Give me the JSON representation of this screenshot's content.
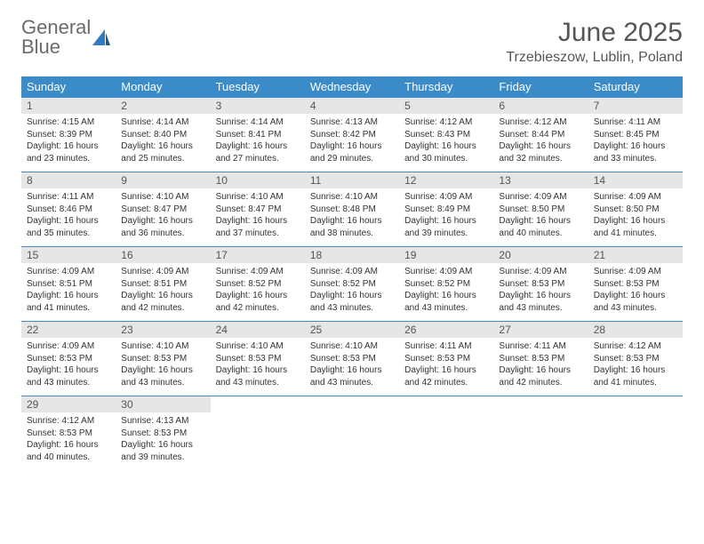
{
  "logo": {
    "line1": "General",
    "line2": "Blue"
  },
  "title": "June 2025",
  "location": "Trzebieszow, Lublin, Poland",
  "colors": {
    "header_bg": "#3b8bc8",
    "header_text": "#ffffff",
    "daynum_bg": "#e6e6e6",
    "text": "#333333",
    "title_text": "#555555",
    "logo_gray": "#6b6b6b",
    "logo_blue": "#2f7ac0"
  },
  "weekdays": [
    "Sunday",
    "Monday",
    "Tuesday",
    "Wednesday",
    "Thursday",
    "Friday",
    "Saturday"
  ],
  "weeks": [
    [
      {
        "n": "1",
        "sunrise": "4:15 AM",
        "sunset": "8:39 PM",
        "daylight": "16 hours and 23 minutes."
      },
      {
        "n": "2",
        "sunrise": "4:14 AM",
        "sunset": "8:40 PM",
        "daylight": "16 hours and 25 minutes."
      },
      {
        "n": "3",
        "sunrise": "4:14 AM",
        "sunset": "8:41 PM",
        "daylight": "16 hours and 27 minutes."
      },
      {
        "n": "4",
        "sunrise": "4:13 AM",
        "sunset": "8:42 PM",
        "daylight": "16 hours and 29 minutes."
      },
      {
        "n": "5",
        "sunrise": "4:12 AM",
        "sunset": "8:43 PM",
        "daylight": "16 hours and 30 minutes."
      },
      {
        "n": "6",
        "sunrise": "4:12 AM",
        "sunset": "8:44 PM",
        "daylight": "16 hours and 32 minutes."
      },
      {
        "n": "7",
        "sunrise": "4:11 AM",
        "sunset": "8:45 PM",
        "daylight": "16 hours and 33 minutes."
      }
    ],
    [
      {
        "n": "8",
        "sunrise": "4:11 AM",
        "sunset": "8:46 PM",
        "daylight": "16 hours and 35 minutes."
      },
      {
        "n": "9",
        "sunrise": "4:10 AM",
        "sunset": "8:47 PM",
        "daylight": "16 hours and 36 minutes."
      },
      {
        "n": "10",
        "sunrise": "4:10 AM",
        "sunset": "8:47 PM",
        "daylight": "16 hours and 37 minutes."
      },
      {
        "n": "11",
        "sunrise": "4:10 AM",
        "sunset": "8:48 PM",
        "daylight": "16 hours and 38 minutes."
      },
      {
        "n": "12",
        "sunrise": "4:09 AM",
        "sunset": "8:49 PM",
        "daylight": "16 hours and 39 minutes."
      },
      {
        "n": "13",
        "sunrise": "4:09 AM",
        "sunset": "8:50 PM",
        "daylight": "16 hours and 40 minutes."
      },
      {
        "n": "14",
        "sunrise": "4:09 AM",
        "sunset": "8:50 PM",
        "daylight": "16 hours and 41 minutes."
      }
    ],
    [
      {
        "n": "15",
        "sunrise": "4:09 AM",
        "sunset": "8:51 PM",
        "daylight": "16 hours and 41 minutes."
      },
      {
        "n": "16",
        "sunrise": "4:09 AM",
        "sunset": "8:51 PM",
        "daylight": "16 hours and 42 minutes."
      },
      {
        "n": "17",
        "sunrise": "4:09 AM",
        "sunset": "8:52 PM",
        "daylight": "16 hours and 42 minutes."
      },
      {
        "n": "18",
        "sunrise": "4:09 AM",
        "sunset": "8:52 PM",
        "daylight": "16 hours and 43 minutes."
      },
      {
        "n": "19",
        "sunrise": "4:09 AM",
        "sunset": "8:52 PM",
        "daylight": "16 hours and 43 minutes."
      },
      {
        "n": "20",
        "sunrise": "4:09 AM",
        "sunset": "8:53 PM",
        "daylight": "16 hours and 43 minutes."
      },
      {
        "n": "21",
        "sunrise": "4:09 AM",
        "sunset": "8:53 PM",
        "daylight": "16 hours and 43 minutes."
      }
    ],
    [
      {
        "n": "22",
        "sunrise": "4:09 AM",
        "sunset": "8:53 PM",
        "daylight": "16 hours and 43 minutes."
      },
      {
        "n": "23",
        "sunrise": "4:10 AM",
        "sunset": "8:53 PM",
        "daylight": "16 hours and 43 minutes."
      },
      {
        "n": "24",
        "sunrise": "4:10 AM",
        "sunset": "8:53 PM",
        "daylight": "16 hours and 43 minutes."
      },
      {
        "n": "25",
        "sunrise": "4:10 AM",
        "sunset": "8:53 PM",
        "daylight": "16 hours and 43 minutes."
      },
      {
        "n": "26",
        "sunrise": "4:11 AM",
        "sunset": "8:53 PM",
        "daylight": "16 hours and 42 minutes."
      },
      {
        "n": "27",
        "sunrise": "4:11 AM",
        "sunset": "8:53 PM",
        "daylight": "16 hours and 42 minutes."
      },
      {
        "n": "28",
        "sunrise": "4:12 AM",
        "sunset": "8:53 PM",
        "daylight": "16 hours and 41 minutes."
      }
    ],
    [
      {
        "n": "29",
        "sunrise": "4:12 AM",
        "sunset": "8:53 PM",
        "daylight": "16 hours and 40 minutes."
      },
      {
        "n": "30",
        "sunrise": "4:13 AM",
        "sunset": "8:53 PM",
        "daylight": "16 hours and 39 minutes."
      },
      null,
      null,
      null,
      null,
      null
    ]
  ],
  "labels": {
    "sunrise": "Sunrise:",
    "sunset": "Sunset:",
    "daylight": "Daylight:"
  }
}
